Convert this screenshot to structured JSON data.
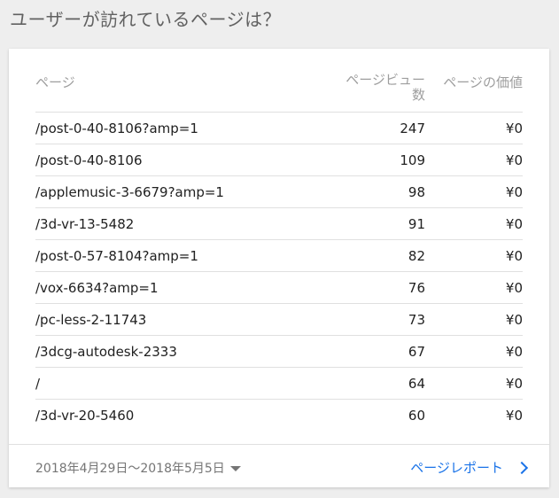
{
  "heading": "ユーザーが訪れているページは？",
  "table": {
    "headers": {
      "page": "ページ",
      "views_line1": "ページビュー",
      "views_line2": "数",
      "value": "ページの価値"
    },
    "rows": [
      {
        "page": "/post-0-40-8106?amp=1",
        "views": "247",
        "value": "¥0"
      },
      {
        "page": "/post-0-40-8106",
        "views": "109",
        "value": "¥0"
      },
      {
        "page": "/applemusic-3-6679?amp=1",
        "views": "98",
        "value": "¥0"
      },
      {
        "page": "/3d-vr-13-5482",
        "views": "91",
        "value": "¥0"
      },
      {
        "page": "/post-0-57-8104?amp=1",
        "views": "82",
        "value": "¥0"
      },
      {
        "page": "/vox-6634?amp=1",
        "views": "76",
        "value": "¥0"
      },
      {
        "page": "/pc-less-2-11743",
        "views": "73",
        "value": "¥0"
      },
      {
        "page": "/3dcg-autodesk-2333",
        "views": "67",
        "value": "¥0"
      },
      {
        "page": "/",
        "views": "64",
        "value": "¥0"
      },
      {
        "page": "/3d-vr-20-5460",
        "views": "60",
        "value": "¥0"
      }
    ]
  },
  "footer": {
    "date_range": "2018年4月29日〜2018年5月5日",
    "report_link": "ページレポート",
    "dropdown_icon": "caret-down-icon",
    "link_icon": "chevron-right-icon"
  }
}
